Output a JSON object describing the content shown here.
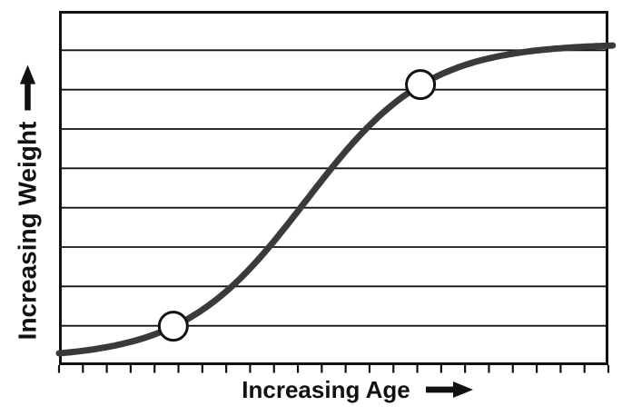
{
  "figure": {
    "background": "#ffffff",
    "kind": "sigmoid growth curve chart"
  },
  "chart_data": {
    "type": "line",
    "title": "",
    "xlabel": "Increasing Age",
    "ylabel": "Increasing Weight",
    "x_axis": {
      "label": "Increasing Age",
      "arrow": "right",
      "tick_count": 24,
      "tick_labels": [],
      "numeric_labels": false
    },
    "y_axis": {
      "label": "Increasing Weight",
      "arrow": "up",
      "gridline_count": 8,
      "tick_labels": [],
      "numeric_labels": false
    },
    "series": [
      {
        "name": "weight-vs-age-growth-curve",
        "shape": "sigmoid",
        "model": {
          "type": "logistic",
          "u0": 0.449,
          "k": 0.111,
          "v_start": 0.018,
          "v_plateau": 0.908
        },
        "x_normalized": [
          0,
          0.05,
          0.1,
          0.15,
          0.2,
          0.25,
          0.3,
          0.35,
          0.4,
          0.45,
          0.5,
          0.55,
          0.6,
          0.65,
          0.7,
          0.75,
          0.8,
          0.85,
          0.9,
          0.95,
          1.0
        ],
        "y_normalized": [
          0.033,
          0.042,
          0.055,
          0.074,
          0.103,
          0.145,
          0.202,
          0.277,
          0.366,
          0.465,
          0.563,
          0.652,
          0.726,
          0.783,
          0.824,
          0.852,
          0.872,
          0.884,
          0.893,
          0.898,
          0.902
        ]
      }
    ],
    "point_markers": [
      {
        "x_normalized": 0.208,
        "y_normalized": 0.11,
        "style": "open-circle"
      },
      {
        "x_normalized": 0.658,
        "y_normalized": 0.792,
        "style": "open-circle"
      }
    ],
    "colors": {
      "curve": "#3a3a3a",
      "frame": "#111111",
      "grid": "#111111",
      "tick": "#111111",
      "marker_fill": "#ffffff",
      "marker_stroke": "#111111",
      "label": "#111111",
      "background": "#ffffff"
    }
  }
}
